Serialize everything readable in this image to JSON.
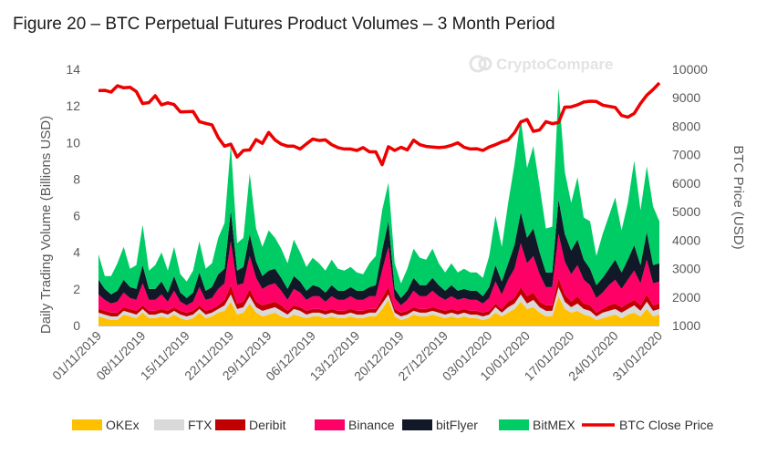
{
  "chart_data": {
    "type": "area",
    "title": "Figure 20 – BTC Perpetual Futures Product Volumes – 3 Month Period",
    "ylabel": "Daily Trading Volume (Billions USD)",
    "y2label": "BTC Price (USD)",
    "xlabel": "",
    "ylim": [
      0,
      14
    ],
    "y2lim": [
      1000,
      10000
    ],
    "yticks": [
      "0",
      "2",
      "4",
      "6",
      "8",
      "10",
      "12",
      "14"
    ],
    "y2ticks": [
      "1000",
      "2000",
      "3000",
      "4000",
      "5000",
      "6000",
      "7000",
      "8000",
      "9000",
      "10000"
    ],
    "xtick_labels": [
      "01/11/2019",
      "08/11/2019",
      "15/11/2019",
      "22/11/2019",
      "29/11/2019",
      "06/12/2019",
      "13/12/2019",
      "20/12/2019",
      "27/12/2019",
      "03/01/2020",
      "10/01/2020",
      "17/01/2020",
      "24/01/2020",
      "31/01/2020"
    ],
    "grid": false,
    "legend_position": "bottom",
    "stack_order": [
      "OKEx",
      "FTX",
      "Deribit",
      "Binance",
      "bitFlyer",
      "BitMEX"
    ],
    "series": [
      {
        "name": "OKEx",
        "kind": "area",
        "color": "#ffc000",
        "values": [
          0.5,
          0.4,
          0.3,
          0.3,
          0.6,
          0.5,
          0.4,
          0.7,
          0.4,
          0.4,
          0.5,
          0.4,
          0.6,
          0.4,
          0.3,
          0.4,
          0.7,
          0.4,
          0.5,
          0.7,
          0.8,
          1.3,
          0.6,
          0.7,
          1.2,
          0.7,
          0.5,
          0.6,
          0.7,
          0.5,
          0.4,
          0.6,
          0.5,
          0.4,
          0.5,
          0.5,
          0.4,
          0.5,
          0.4,
          0.4,
          0.5,
          0.4,
          0.4,
          0.5,
          0.5,
          0.9,
          1.4,
          0.5,
          0.3,
          0.4,
          0.6,
          0.5,
          0.5,
          0.6,
          0.5,
          0.4,
          0.5,
          0.4,
          0.5,
          0.4,
          0.4,
          0.3,
          0.4,
          0.7,
          0.5,
          0.7,
          0.9,
          1.3,
          0.9,
          1.0,
          0.7,
          0.5,
          0.5,
          1.6,
          0.9,
          0.7,
          0.8,
          0.6,
          0.5,
          0.3,
          0.4,
          0.5,
          0.6,
          0.4,
          0.6,
          0.7,
          0.5,
          0.9,
          0.5,
          0.6
        ]
      },
      {
        "name": "FTX",
        "kind": "area",
        "color": "#d9d9d9",
        "values": [
          0.2,
          0.2,
          0.2,
          0.2,
          0.2,
          0.2,
          0.2,
          0.2,
          0.2,
          0.2,
          0.2,
          0.2,
          0.2,
          0.2,
          0.2,
          0.2,
          0.2,
          0.2,
          0.2,
          0.2,
          0.3,
          0.4,
          0.3,
          0.3,
          0.4,
          0.3,
          0.3,
          0.3,
          0.3,
          0.3,
          0.2,
          0.3,
          0.3,
          0.2,
          0.2,
          0.2,
          0.2,
          0.2,
          0.2,
          0.2,
          0.2,
          0.2,
          0.2,
          0.2,
          0.2,
          0.3,
          0.3,
          0.2,
          0.2,
          0.2,
          0.2,
          0.2,
          0.2,
          0.2,
          0.2,
          0.2,
          0.2,
          0.2,
          0.2,
          0.2,
          0.2,
          0.2,
          0.2,
          0.3,
          0.2,
          0.3,
          0.3,
          0.4,
          0.3,
          0.4,
          0.3,
          0.3,
          0.3,
          0.5,
          0.4,
          0.3,
          0.4,
          0.3,
          0.3,
          0.2,
          0.3,
          0.3,
          0.3,
          0.3,
          0.3,
          0.4,
          0.3,
          0.4,
          0.3,
          0.3
        ]
      },
      {
        "name": "Deribit",
        "kind": "area",
        "color": "#c00000",
        "values": [
          0.2,
          0.2,
          0.2,
          0.2,
          0.2,
          0.2,
          0.2,
          0.2,
          0.2,
          0.2,
          0.2,
          0.2,
          0.2,
          0.2,
          0.2,
          0.2,
          0.2,
          0.2,
          0.2,
          0.2,
          0.3,
          0.5,
          0.3,
          0.3,
          0.4,
          0.3,
          0.3,
          0.3,
          0.3,
          0.3,
          0.2,
          0.2,
          0.2,
          0.2,
          0.2,
          0.2,
          0.2,
          0.2,
          0.2,
          0.2,
          0.2,
          0.2,
          0.2,
          0.2,
          0.2,
          0.3,
          0.4,
          0.2,
          0.2,
          0.2,
          0.2,
          0.2,
          0.2,
          0.2,
          0.2,
          0.2,
          0.2,
          0.2,
          0.2,
          0.2,
          0.2,
          0.2,
          0.2,
          0.2,
          0.2,
          0.3,
          0.3,
          0.4,
          0.4,
          0.4,
          0.3,
          0.3,
          0.3,
          0.5,
          0.4,
          0.3,
          0.4,
          0.3,
          0.3,
          0.2,
          0.2,
          0.3,
          0.3,
          0.3,
          0.3,
          0.3,
          0.3,
          0.4,
          0.3,
          0.3
        ]
      },
      {
        "name": "Binance",
        "kind": "area",
        "color": "#ff0066",
        "values": [
          0.8,
          0.6,
          0.5,
          0.6,
          0.8,
          0.6,
          0.6,
          1.2,
          0.6,
          0.6,
          0.8,
          0.5,
          0.9,
          0.5,
          0.4,
          0.5,
          1.0,
          0.6,
          0.6,
          0.9,
          0.9,
          2.4,
          1.0,
          1.0,
          1.8,
          1.3,
          0.9,
          1.0,
          1.0,
          0.8,
          0.6,
          0.9,
          0.8,
          0.6,
          0.7,
          0.7,
          0.5,
          0.7,
          0.6,
          0.6,
          0.7,
          0.6,
          0.6,
          0.7,
          0.7,
          1.5,
          2.2,
          0.6,
          0.4,
          0.6,
          0.9,
          0.7,
          0.7,
          0.9,
          0.7,
          0.6,
          0.7,
          0.6,
          0.6,
          0.6,
          0.6,
          0.5,
          0.7,
          1.2,
          0.8,
          1.2,
          1.6,
          2.4,
          1.8,
          2.0,
          1.5,
          1.0,
          1.0,
          2.4,
          1.8,
          1.5,
          1.7,
          1.3,
          1.1,
          0.8,
          0.9,
          1.1,
          1.3,
          1.0,
          1.3,
          1.6,
          1.2,
          1.9,
          1.2,
          1.2
        ]
      },
      {
        "name": "bitFlyer",
        "kind": "area",
        "color": "#111827",
        "values": [
          0.8,
          0.6,
          0.5,
          0.6,
          0.7,
          0.6,
          0.6,
          1.0,
          0.6,
          0.6,
          0.7,
          0.5,
          0.8,
          0.5,
          0.4,
          0.5,
          0.8,
          0.5,
          0.6,
          0.8,
          0.8,
          1.7,
          0.8,
          0.9,
          1.2,
          0.9,
          0.7,
          0.8,
          0.8,
          0.7,
          0.6,
          0.7,
          0.6,
          0.5,
          0.6,
          0.5,
          0.5,
          0.6,
          0.5,
          0.5,
          0.5,
          0.5,
          0.5,
          0.5,
          0.6,
          1.1,
          1.4,
          0.5,
          0.4,
          0.5,
          0.7,
          0.6,
          0.6,
          0.7,
          0.6,
          0.5,
          0.6,
          0.5,
          0.5,
          0.5,
          0.5,
          0.4,
          0.6,
          0.9,
          0.7,
          0.9,
          1.3,
          1.7,
          1.4,
          1.5,
          1.2,
          0.8,
          0.8,
          1.9,
          1.5,
          1.3,
          1.4,
          1.1,
          0.9,
          0.7,
          0.8,
          0.9,
          1.1,
          0.9,
          1.1,
          1.4,
          1.0,
          1.5,
          1.0,
          1.0
        ]
      },
      {
        "name": "BitMEX",
        "kind": "area",
        "color": "#00cc66",
        "values": [
          1.4,
          0.7,
          1.0,
          1.5,
          1.8,
          1.0,
          1.3,
          2.2,
          1.0,
          1.3,
          1.6,
          1.2,
          1.6,
          1.0,
          0.9,
          1.2,
          1.7,
          1.2,
          1.3,
          2.0,
          2.5,
          3.6,
          1.5,
          1.6,
          3.3,
          1.8,
          1.6,
          2.2,
          1.7,
          1.6,
          1.4,
          2.0,
          1.6,
          1.3,
          1.5,
          1.3,
          1.2,
          1.4,
          1.2,
          1.1,
          1.1,
          1.0,
          0.9,
          1.3,
          1.6,
          2.2,
          2.1,
          1.4,
          0.8,
          1.2,
          1.6,
          1.5,
          1.4,
          1.6,
          1.2,
          1.0,
          1.2,
          1.0,
          1.1,
          1.0,
          1.0,
          1.0,
          1.7,
          2.7,
          1.9,
          3.3,
          4.4,
          5.1,
          3.8,
          4.5,
          3.6,
          2.4,
          2.5,
          6.1,
          3.4,
          2.6,
          3.4,
          2.3,
          2.6,
          1.6,
          2.4,
          2.9,
          3.4,
          2.3,
          3.1,
          4.6,
          3.0,
          3.6,
          3.2,
          2.3
        ]
      },
      {
        "name": "BTC Close Price",
        "kind": "line",
        "axis": "right",
        "color": "#ee0000",
        "values": [
          9250,
          9260,
          9200,
          9420,
          9350,
          9370,
          9220,
          8800,
          8830,
          9070,
          8750,
          8820,
          8760,
          8500,
          8510,
          8520,
          8160,
          8100,
          8050,
          7600,
          7300,
          7370,
          6920,
          7150,
          7170,
          7530,
          7400,
          7780,
          7520,
          7370,
          7300,
          7300,
          7200,
          7380,
          7550,
          7500,
          7520,
          7350,
          7250,
          7200,
          7200,
          7150,
          7250,
          7100,
          7100,
          6650,
          7280,
          7150,
          7260,
          7170,
          7510,
          7350,
          7290,
          7270,
          7250,
          7270,
          7330,
          7420,
          7260,
          7200,
          7210,
          7150,
          7270,
          7350,
          7450,
          7520,
          7770,
          8150,
          8240,
          7820,
          7870,
          8160,
          8090,
          8130,
          8670,
          8680,
          8750,
          8850,
          8880,
          8870,
          8740,
          8700,
          8660,
          8380,
          8320,
          8450,
          8800,
          9090,
          9290,
          9520
        ]
      }
    ]
  },
  "watermark": "CryptoCompare"
}
